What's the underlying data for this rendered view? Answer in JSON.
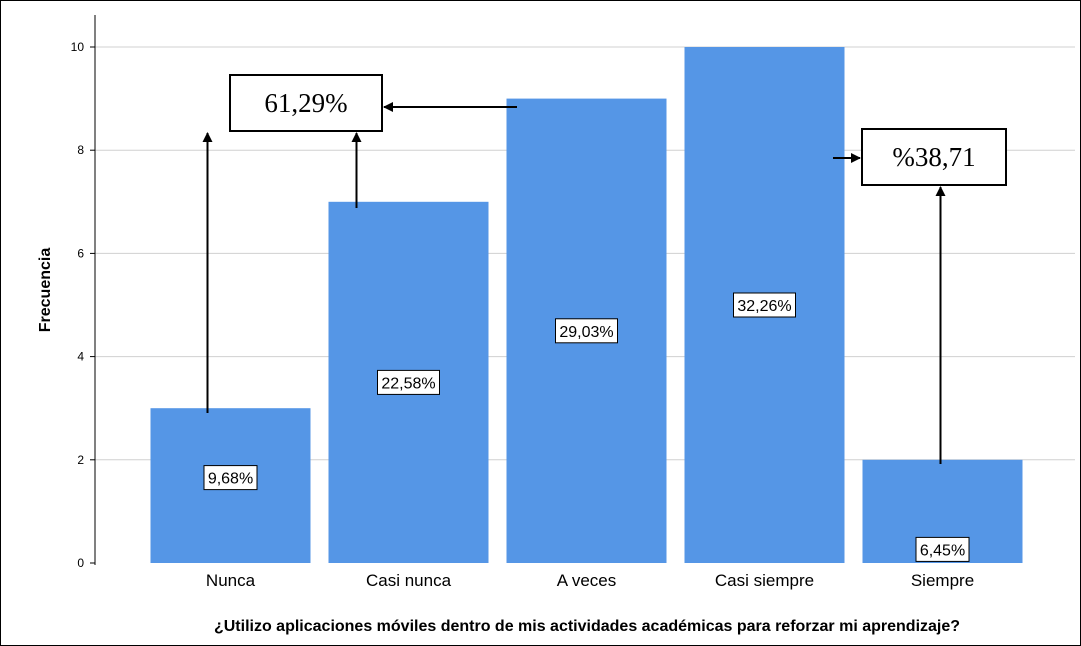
{
  "chart_data": {
    "type": "bar",
    "categories": [
      "Nunca",
      "Casi nunca",
      "A veces",
      "Casi siempre",
      "Siempre"
    ],
    "values": [
      3,
      7,
      9,
      10,
      2
    ],
    "data_labels": [
      "9,68%",
      "22,58%",
      "29,03%",
      "32,26%",
      "6,45%"
    ],
    "xlabel": "¿Utilizo aplicaciones móviles dentro de mis actividades académicas para reforzar mi aprendizaje?",
    "ylabel": "Frecuencia",
    "ylim": [
      0,
      10
    ],
    "yticks": [
      0,
      2,
      4,
      6,
      8,
      10
    ],
    "grid": true,
    "bar_color": "#5596e6",
    "annotations": [
      {
        "text": "61,29%",
        "groups": [
          "Nunca",
          "Casi nunca",
          "A veces"
        ]
      },
      {
        "text": "%38,71",
        "groups": [
          "Casi siempre",
          "Siempre"
        ]
      }
    ]
  }
}
